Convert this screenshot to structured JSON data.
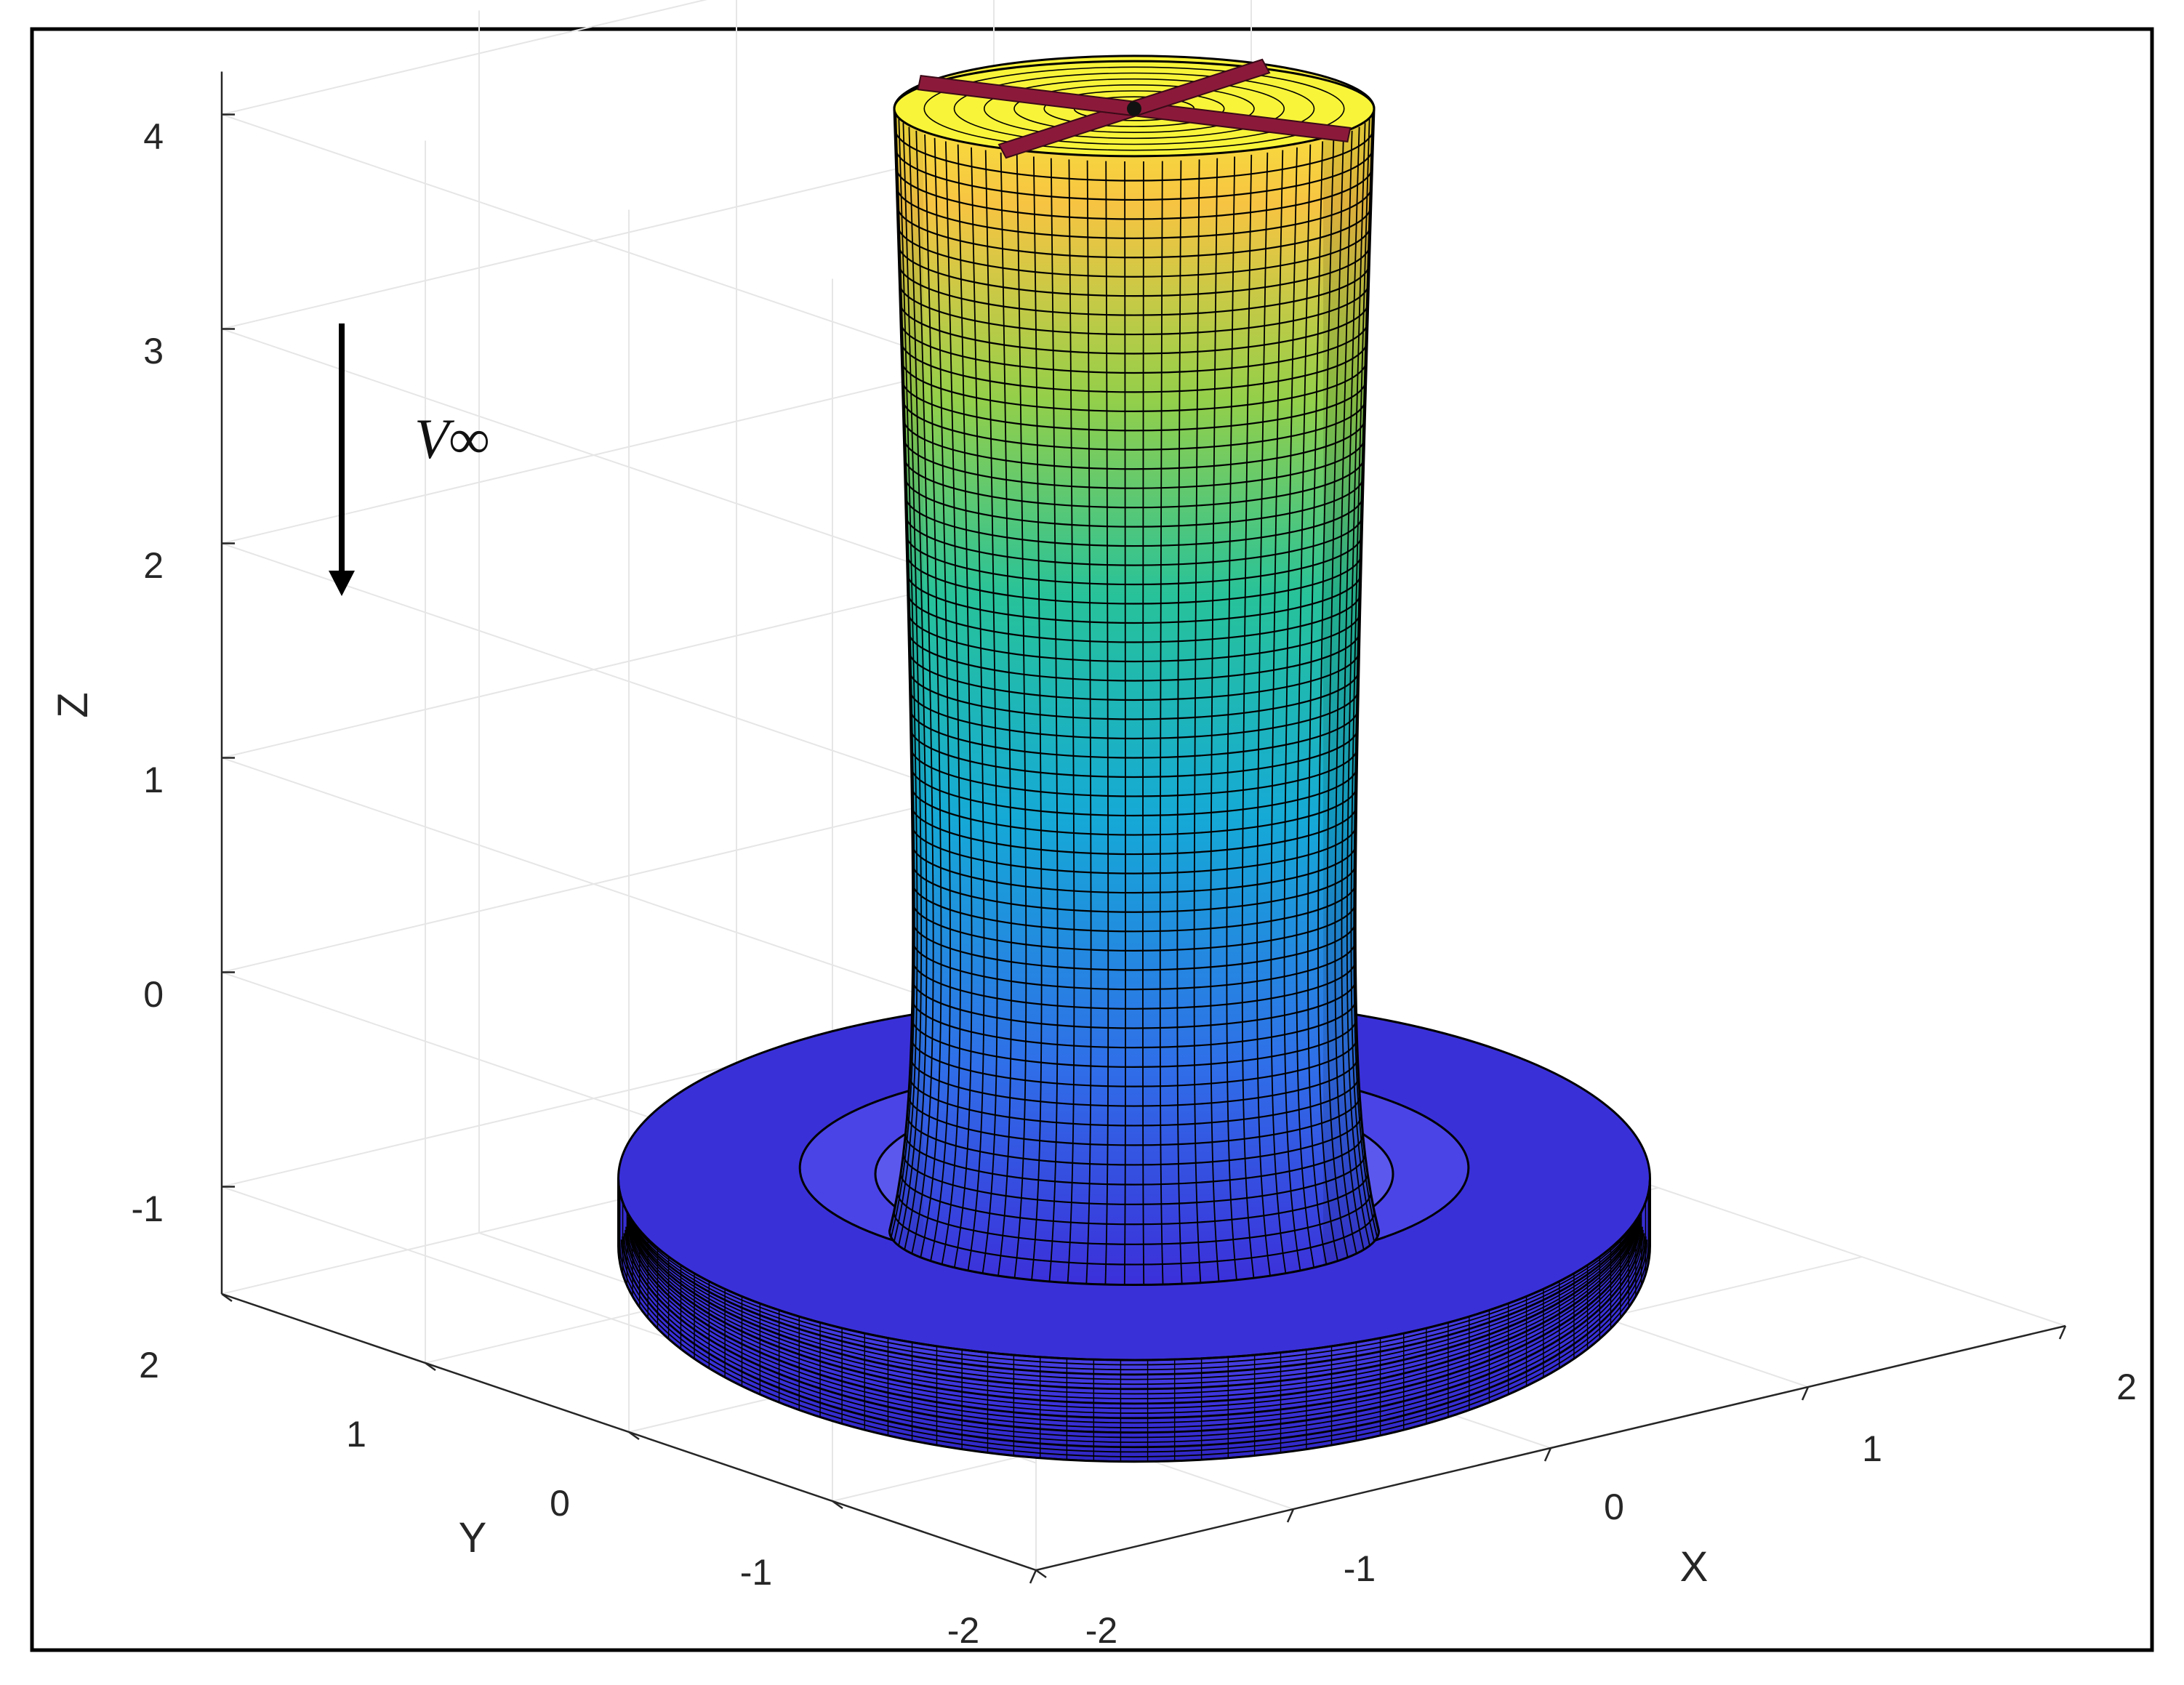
{
  "chart_data": {
    "type": "surface3d",
    "title": "",
    "xlabel": "X",
    "ylabel": "Y",
    "zlabel": "Z",
    "xlim": [
      -2,
      2
    ],
    "ylim": [
      -2,
      2
    ],
    "zlim": [
      -1.5,
      4.2
    ],
    "xticks": [
      "-2",
      "-1",
      "0",
      "1",
      "2"
    ],
    "yticks": [
      "-2",
      "-1",
      "0",
      "1",
      "2"
    ],
    "zticks": [
      "-1",
      "0",
      "1",
      "2",
      "3",
      "4"
    ],
    "grid": true,
    "box": true,
    "colormap": [
      "#3b2fd9",
      "#2f6fe8",
      "#15a9d6",
      "#27c29a",
      "#93cf4a",
      "#f7c442",
      "#f8f43a"
    ],
    "annotation": {
      "label": "V∞",
      "arrow_direction": "down"
    },
    "rotor": {
      "blade_color": "#8b1a3a",
      "blades": 4,
      "hub_z": 4.0
    },
    "wake_surface": {
      "column_radius_top": 1.0,
      "column_radius_waist": 0.9,
      "column_z_top": 4.0,
      "ring_center_z": -1.2,
      "ring_major_radius": 1.8,
      "ring_minor_radius": 0.35
    }
  }
}
